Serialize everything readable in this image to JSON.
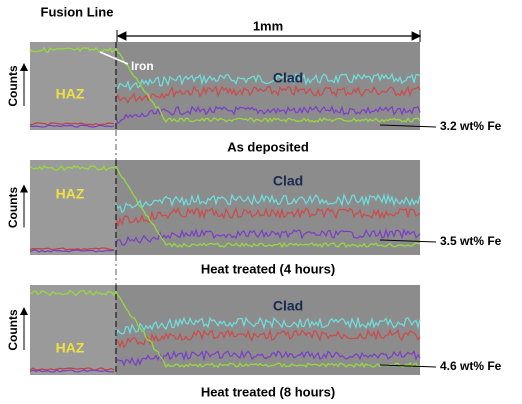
{
  "header": {
    "fusion_line": "Fusion Line",
    "scale": "1mm"
  },
  "panels": [
    {
      "counts": "Counts",
      "haz": "HAZ",
      "clad": "Clad",
      "iron": "Iron",
      "fe": "3.2 wt% Fe",
      "caption": "As deposited"
    },
    {
      "counts": "Counts",
      "haz": "HAZ",
      "clad": "Clad",
      "fe": "3.5 wt% Fe",
      "caption": "Heat treated (4 hours)"
    },
    {
      "counts": "Counts",
      "haz": "HAZ",
      "clad": "Clad",
      "fe": "4.6 wt% Fe",
      "caption": "Heat treated (8 hours)"
    }
  ]
}
